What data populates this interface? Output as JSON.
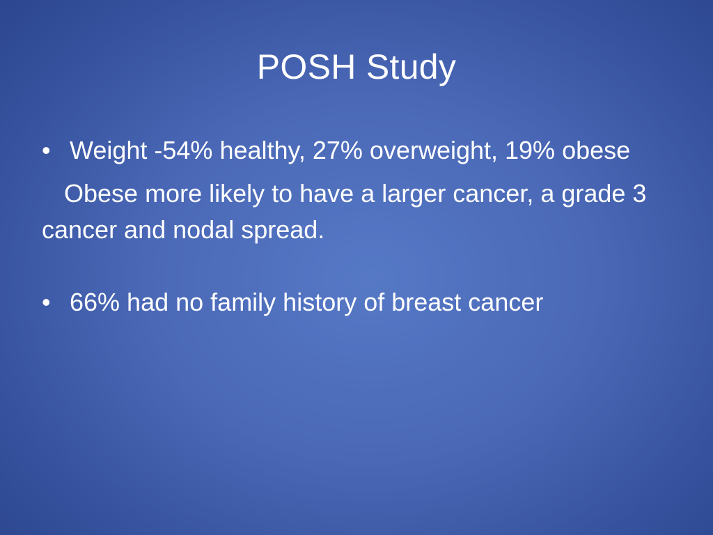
{
  "slide": {
    "title": "POSH Study",
    "bullet_glyph": "•",
    "bullets": [
      {
        "text": "Weight -54% healthy, 27% overweight, 19% obese"
      },
      {
        "text": "66% had no family history of breast cancer"
      }
    ],
    "paragraph": "Obese more likely to have a larger cancer, a grade 3 cancer and nodal spread."
  },
  "colors": {
    "background_center": "#5679c6",
    "background_edge": "#2d4790",
    "text": "#ffffff"
  }
}
